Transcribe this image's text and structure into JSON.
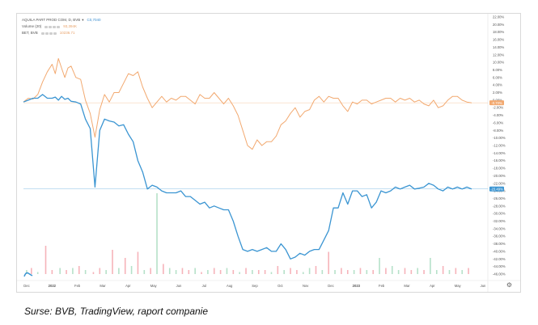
{
  "legend": {
    "main": {
      "label": "AQUILA PART PROD COM, D, BVB",
      "value": "C0,7040",
      "color": "#3b8ed0"
    },
    "volume": {
      "label": "Volume (20)",
      "value": "93,394K",
      "color": "#e8a26a"
    },
    "index": {
      "label": "BET, BVB",
      "value": "10236.71",
      "color": "#e8a26a"
    }
  },
  "caption": "Surse: BVB, TradingView,  raport companie",
  "chart_data": {
    "type": "line",
    "x_labels": [
      "Dec",
      "2022",
      "Feb",
      "Mar",
      "Apr",
      "May",
      "Jun",
      "Jul",
      "Aug",
      "Sep",
      "Oct",
      "Nov",
      "Dec",
      "2023",
      "Feb",
      "Mar",
      "Apr",
      "May",
      "Jun"
    ],
    "y_ticks": [
      "22.00%",
      "20.00%",
      "18.00%",
      "16.00%",
      "14.00%",
      "12.00%",
      "10.00%",
      "8.00%",
      "6.00%",
      "4.00%",
      "2.00%",
      "0.00%",
      "-2.00%",
      "-4.00%",
      "-6.00%",
      "-8.00%",
      "-10.00%",
      "-12.00%",
      "-14.00%",
      "-16.00%",
      "-18.00%",
      "-20.00%",
      "-22.00%",
      "-24.00%",
      "-26.00%",
      "-28.00%",
      "-30.00%",
      "-32.00%",
      "-34.00%",
      "-36.00%",
      "-38.00%",
      "-40.00%",
      "-42.00%",
      "-44.00%",
      "-46.00%"
    ],
    "ylim": [
      -46,
      22
    ],
    "series": [
      {
        "name": "BET, BVB",
        "color": "#f2a970",
        "last_label": "-0.70%",
        "x": [
          0,
          3,
          6,
          9,
          12,
          15,
          18,
          20,
          22,
          24,
          26,
          28,
          30,
          33,
          36,
          39,
          42,
          45,
          48,
          51,
          54,
          57,
          60,
          63,
          66,
          69,
          72,
          75,
          78,
          81,
          84,
          87,
          90,
          93,
          96,
          99,
          102,
          105,
          108,
          111,
          114,
          117,
          120,
          123,
          126,
          129,
          132,
          135,
          138,
          141,
          144,
          147,
          150,
          153,
          156,
          159,
          162,
          165,
          168,
          171,
          174,
          177,
          180,
          183,
          186,
          189,
          192,
          195,
          198,
          201,
          204,
          207,
          210,
          213,
          216,
          219,
          222,
          225,
          228,
          231,
          234,
          237,
          240,
          243,
          246,
          249,
          252,
          255,
          258,
          261,
          264,
          267,
          270,
          273,
          276,
          279,
          282
        ],
        "values": [
          -0.5,
          0.5,
          0.3,
          1.5,
          4.8,
          7.5,
          9.5,
          7.0,
          11.0,
          8.5,
          6.0,
          8.5,
          9.0,
          6.0,
          5.5,
          0.0,
          -3.5,
          -9.8,
          -2.5,
          1.5,
          -0.5,
          2.0,
          2.0,
          4.5,
          7.0,
          6.5,
          7.5,
          3.5,
          0.5,
          -2.0,
          -0.5,
          1.0,
          -0.5,
          0.5,
          0.0,
          1.0,
          1.0,
          0.0,
          -1.0,
          1.5,
          0.5,
          0.5,
          2.0,
          0.5,
          -1.0,
          0.5,
          -1.5,
          -4.0,
          -8.0,
          -12.0,
          -13.0,
          -10.5,
          -12.0,
          -11.0,
          -11.0,
          -9.5,
          -6.5,
          -5.5,
          -3.5,
          -2.0,
          -4.5,
          -3.0,
          -2.5,
          0.0,
          1.0,
          -0.5,
          1.0,
          0.5,
          0.5,
          -1.5,
          -3.0,
          -0.5,
          -1.0,
          0.0,
          0.0,
          -1.0,
          -0.5,
          0.0,
          0.5,
          0.5,
          -0.5,
          0.5,
          0.0,
          0.5,
          -0.5,
          0.0,
          -1.0,
          -1.5,
          0.0,
          -2.0,
          -1.5,
          0.0,
          1.0,
          1.0,
          0.0,
          -0.5,
          -0.7
        ]
      },
      {
        "name": "AQUILA PART PROD COM, D, BVB",
        "color": "#3b95d2",
        "last_label": "-23.49%",
        "x": [
          0,
          3,
          6,
          9,
          12,
          15,
          18,
          20,
          22,
          24,
          26,
          28,
          30,
          33,
          36,
          39,
          42,
          45,
          48,
          51,
          54,
          57,
          60,
          63,
          66,
          69,
          72,
          75,
          78,
          81,
          84,
          87,
          90,
          93,
          96,
          99,
          102,
          105,
          108,
          111,
          114,
          117,
          120,
          123,
          126,
          129,
          132,
          135,
          138,
          141,
          144,
          147,
          150,
          153,
          156,
          159,
          162,
          165,
          168,
          171,
          174,
          177,
          180,
          183,
          186,
          189,
          192,
          195,
          198,
          201,
          204,
          207,
          210,
          213,
          216,
          219,
          222,
          225,
          228,
          231,
          234,
          237,
          240,
          243,
          246,
          249,
          252,
          255,
          258,
          261,
          264,
          267,
          270,
          273,
          276,
          279,
          282
        ],
        "values": [
          -0.5,
          0.0,
          0.5,
          0.5,
          1.5,
          0.5,
          0.5,
          0.8,
          0.0,
          1.0,
          0.2,
          0.5,
          -0.3,
          -0.5,
          -1.0,
          -5.0,
          -7.5,
          -23.0,
          -8.0,
          -5.0,
          -5.5,
          -5.8,
          -6.8,
          -6.5,
          -9.0,
          -11.0,
          -16.0,
          -19.0,
          -23.5,
          -22.5,
          -23.0,
          -24.0,
          -24.5,
          -24.5,
          -24.5,
          -24.0,
          -25.5,
          -25.5,
          -26.5,
          -27.5,
          -27.0,
          -28.5,
          -28.0,
          -28.5,
          -29.0,
          -29.0,
          -32.0,
          -36.0,
          -39.5,
          -40.0,
          -39.5,
          -40.0,
          -39.5,
          -39.0,
          -40.0,
          -40.0,
          -38.0,
          -39.5,
          -42.0,
          -41.5,
          -40.5,
          -41.0,
          -40.0,
          -39.5,
          -39.5,
          -37.0,
          -34.5,
          -28.5,
          -28.5,
          -24.5,
          -27.5,
          -24.0,
          -24.0,
          -25.5,
          -25.0,
          -28.5,
          -27.0,
          -24.0,
          -24.5,
          -24.0,
          -23.0,
          -23.5,
          -23.0,
          -22.5,
          -23.5,
          -23.3,
          -23.0,
          -22.0,
          -22.5,
          -23.5,
          -24.0,
          -23.0,
          -23.5,
          -23.0,
          -23.5,
          -23.0,
          -23.5
        ]
      }
    ],
    "volume": {
      "x": [
        2,
        5,
        9,
        14,
        18,
        23,
        27,
        31,
        35,
        39,
        44,
        48,
        52,
        56,
        60,
        64,
        68,
        72,
        76,
        80,
        84,
        88,
        92,
        96,
        100,
        104,
        108,
        112,
        116,
        120,
        124,
        128,
        132,
        136,
        140,
        144,
        148,
        152,
        156,
        160,
        164,
        168,
        172,
        176,
        180,
        184,
        188,
        192,
        196,
        200,
        204,
        208,
        212,
        216,
        220,
        224,
        228,
        232,
        236,
        240,
        244,
        248,
        252,
        256,
        260,
        264,
        268,
        272,
        276,
        280
      ],
      "values": [
        2,
        3,
        1,
        14,
        2,
        3,
        2,
        3,
        4,
        2,
        1,
        3,
        2,
        12,
        3,
        8,
        4,
        11,
        2,
        3,
        40,
        5,
        3,
        2,
        3,
        2,
        3,
        1,
        2,
        3,
        2,
        3,
        2,
        1,
        3,
        2,
        2,
        2,
        1,
        4,
        2,
        3,
        2,
        1,
        3,
        4,
        2,
        11,
        2,
        3,
        2,
        2,
        3,
        2,
        2,
        8,
        3,
        4,
        2,
        3,
        2,
        3,
        2,
        8,
        2,
        4,
        2,
        3,
        2,
        3
      ],
      "up": [
        true,
        false,
        true,
        false,
        false,
        true,
        false,
        true,
        false,
        true,
        false,
        false,
        true,
        false,
        true,
        false,
        true,
        false,
        true,
        false,
        true,
        false,
        true,
        true,
        false,
        false,
        true,
        false,
        true,
        false,
        false,
        true,
        false,
        true,
        false,
        true,
        false,
        false,
        true,
        false,
        true,
        false,
        false,
        true,
        true,
        false,
        true,
        false,
        true,
        false,
        false,
        true,
        false,
        true,
        false,
        true,
        false,
        true,
        true,
        false,
        false,
        true,
        false,
        true,
        true,
        false,
        true,
        false,
        true,
        false
      ]
    }
  }
}
